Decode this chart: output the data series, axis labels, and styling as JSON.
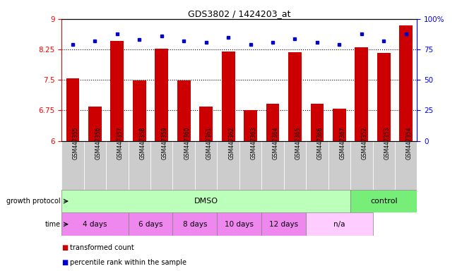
{
  "title": "GDS3802 / 1424203_at",
  "samples": [
    "GSM447355",
    "GSM447356",
    "GSM447357",
    "GSM447358",
    "GSM447359",
    "GSM447360",
    "GSM447361",
    "GSM447362",
    "GSM447363",
    "GSM447364",
    "GSM447365",
    "GSM447366",
    "GSM447367",
    "GSM447352",
    "GSM447353",
    "GSM447354"
  ],
  "bar_values": [
    7.54,
    6.84,
    8.46,
    7.48,
    8.27,
    7.48,
    6.84,
    8.2,
    6.75,
    6.92,
    8.18,
    6.92,
    6.8,
    8.3,
    8.16,
    8.84
  ],
  "dot_values": [
    79,
    82,
    88,
    83,
    86,
    82,
    81,
    85,
    79,
    81,
    84,
    81,
    79,
    88,
    82,
    88
  ],
  "ylim_left": [
    6,
    9
  ],
  "ylim_right": [
    0,
    100
  ],
  "yticks_left": [
    6,
    6.75,
    7.5,
    8.25,
    9
  ],
  "yticks_right": [
    0,
    25,
    50,
    75,
    100
  ],
  "bar_color": "#cc0000",
  "dot_color": "#0000cc",
  "dmso_n": 13,
  "ctrl_n": 3,
  "group1_label": "DMSO",
  "group2_label": "control",
  "growth_protocol_label": "growth protocol",
  "time_label": "time",
  "time_groups": [
    "4 days",
    "6 days",
    "8 days",
    "10 days",
    "12 days",
    "n/a"
  ],
  "time_group_cols": [
    3,
    2,
    2,
    2,
    2,
    3
  ],
  "dmso_color": "#bbffbb",
  "control_color": "#77ee77",
  "time_color": "#ee88ee",
  "time_na_color": "#ffccff",
  "tick_bg": "#cccccc",
  "legend_red": "transformed count",
  "legend_blue": "percentile rank within the sample"
}
